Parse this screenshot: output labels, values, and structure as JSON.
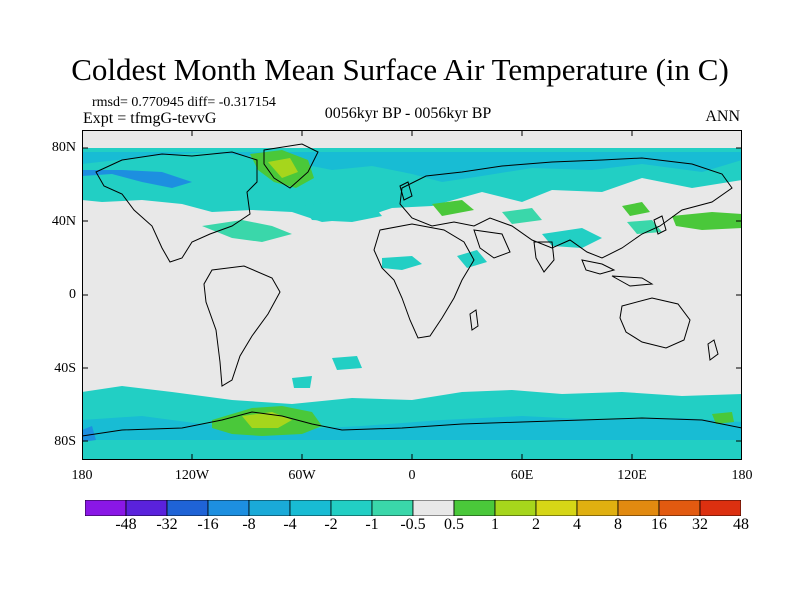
{
  "header": {
    "title": "Coldest Month Mean Surface Air Temperature (in C)",
    "stats": "rmsd= 0.770945 diff= -0.317154",
    "expt": "Expt = tfmgG-tevvG",
    "period": "0056kyr BP - 0056kyr BP",
    "season": "ANN"
  },
  "axes": {
    "lat_labels": [
      "80N",
      "40N",
      "0",
      "40S",
      "80S"
    ],
    "lon_labels": [
      "180",
      "120W",
      "60W",
      "0",
      "60E",
      "120E",
      "180"
    ]
  },
  "colorbar": {
    "labels": [
      "-48",
      "-32",
      "-16",
      "-8",
      "-4",
      "-2",
      "-1",
      "-0.5",
      "0.5",
      "1",
      "2",
      "4",
      "8",
      "16",
      "32",
      "48"
    ],
    "colors": [
      "#8a17e6",
      "#5a22dc",
      "#1f63d6",
      "#1d8fe0",
      "#1aaad8",
      "#18bcd4",
      "#22cfc4",
      "#3ad7aa",
      "#e8e8e8",
      "#4ac83a",
      "#a6d61c",
      "#d6d616",
      "#e0b010",
      "#e28a10",
      "#e25a10",
      "#dc3010"
    ]
  },
  "map": {
    "neutral_color": "#e8e8e8",
    "coast_color": "#000000"
  }
}
